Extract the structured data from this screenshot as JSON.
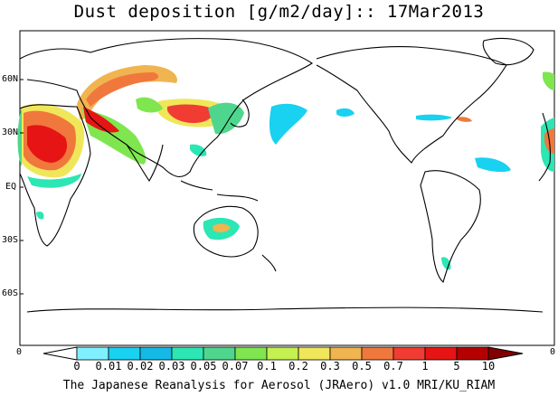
{
  "title": "Dust deposition [g/m2/day]:: 17Mar2013",
  "lat_labels": [
    "60N",
    "30N",
    "EQ",
    "30S",
    "60S"
  ],
  "edge_labels": {
    "left": "0",
    "right": "0"
  },
  "legend": {
    "tick_labels": [
      "0",
      "0.01",
      "0.02",
      "0.03",
      "0.05",
      "0.07",
      "0.1",
      "0.2",
      "0.3",
      "0.5",
      "0.7",
      "1",
      "5",
      "10"
    ],
    "colors": [
      "#ffffff",
      "#7ff0ff",
      "#19d1f0",
      "#14b9e6",
      "#2ce6b4",
      "#4fd68e",
      "#7fe64f",
      "#c4f050",
      "#f0e65a",
      "#f0b450",
      "#f0783c",
      "#f03c32",
      "#e61414",
      "#b40000",
      "#820000"
    ]
  },
  "footer": "The Japanese Reanalysis for Aerosol (JRAero) v1.0 MRI/KU_RIAM"
}
